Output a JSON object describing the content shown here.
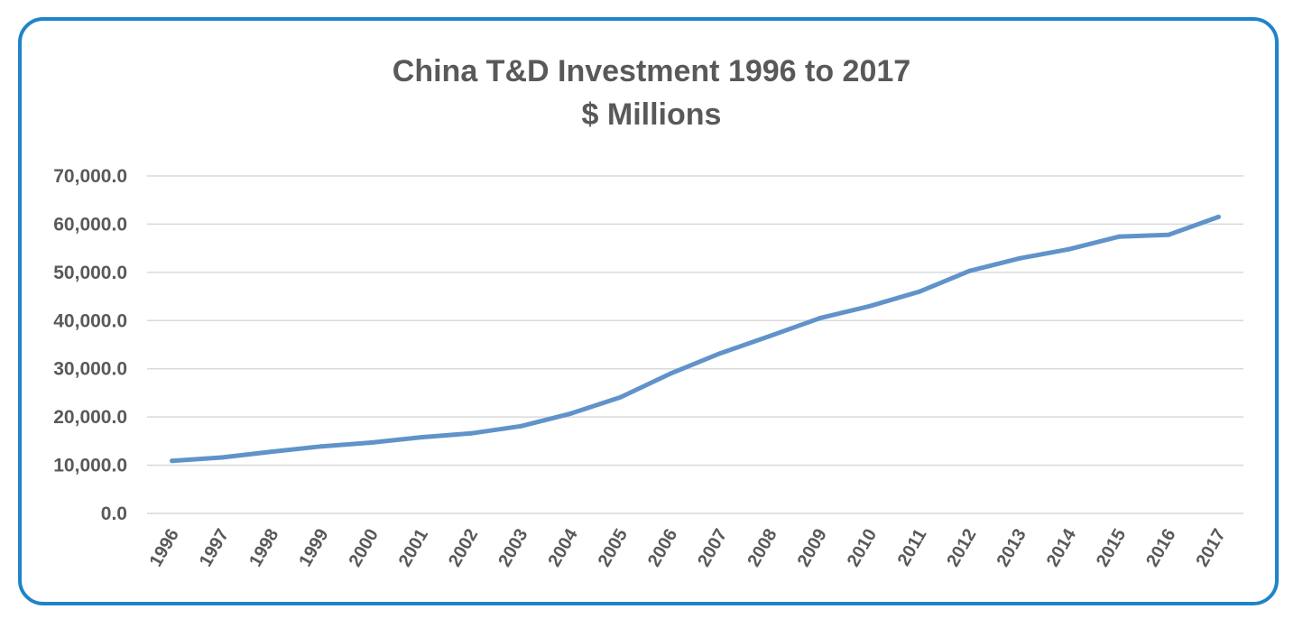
{
  "chart_data": {
    "type": "line",
    "title": "China T&D Investment 1996 to 2017",
    "subtitle": "$ Millions",
    "xlabel": "",
    "ylabel": "",
    "x": [
      "1996",
      "1997",
      "1998",
      "1999",
      "2000",
      "2001",
      "2002",
      "2003",
      "2004",
      "2005",
      "2006",
      "2007",
      "2008",
      "2009",
      "2010",
      "2011",
      "2012",
      "2013",
      "2014",
      "2015",
      "2016",
      "2017"
    ],
    "series": [
      {
        "values": [
          10900,
          11600,
          12800,
          13900,
          14700,
          15800,
          16600,
          18100,
          20700,
          24100,
          29000,
          33200,
          36800,
          40500,
          43000,
          46000,
          50300,
          52900,
          54800,
          57400,
          57800,
          61500
        ],
        "color": "#6093c9"
      }
    ],
    "yticks": [
      "0.0",
      "10,000.0",
      "20,000.0",
      "30,000.0",
      "40,000.0",
      "50,000.0",
      "60,000.0",
      "70,000.0"
    ],
    "ylim": [
      0,
      70000
    ],
    "grid": true,
    "legend": "none",
    "colors": {
      "frame": "#1f84c8",
      "grid": "#d9d9d9",
      "text": "#595959"
    }
  }
}
